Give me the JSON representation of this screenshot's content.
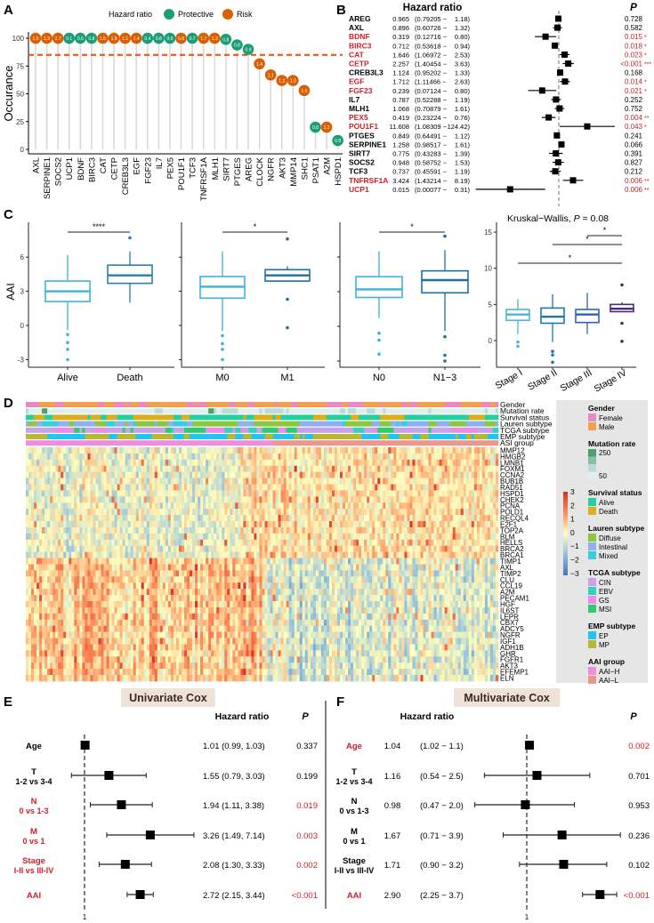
{
  "panel_labels": [
    "A",
    "B",
    "C",
    "D",
    "E",
    "F"
  ],
  "colors": {
    "protective": "#1b9e77",
    "risk": "#d95f02",
    "threshold": "#ff4500",
    "significant_text": "#d0202a",
    "title_box": "#efe2d6",
    "legend_bg": "#e6e6e6"
  },
  "chart_data": [
    {
      "id": "A",
      "type": "scatter",
      "title": "",
      "legend_title": "Hazard ratio",
      "legend": [
        "Protective",
        "Risk"
      ],
      "legend_placement": "top",
      "xlabel": "",
      "ylabel": "Occurance",
      "ylim": [
        0,
        100
      ],
      "yticks": [
        0,
        25,
        50,
        75,
        100
      ],
      "threshold": 85,
      "categories": [
        "AXL",
        "SERPINE1",
        "SOCS2",
        "UCP1",
        "BDNF",
        "BIRC3",
        "CAT",
        "CETP",
        "CREB3L3",
        "EGF",
        "FGF23",
        "IL7",
        "PEX5",
        "POU1F1",
        "TCF3",
        "TNFRSF1A",
        "MLH1",
        "SIRT7",
        "PTGES",
        "AREG",
        "CLOCK",
        "NGFR",
        "AKT3",
        "MMP14",
        "SHC1",
        "PSAT1",
        "A2M",
        "HSPD1"
      ],
      "occurrence": [
        100,
        100,
        100,
        100,
        100,
        100,
        100,
        100,
        100,
        100,
        100,
        100,
        100,
        100,
        100,
        100,
        100,
        99,
        94,
        90,
        77,
        67,
        62,
        62,
        53,
        20,
        20,
        8
      ],
      "hazard_ratio": [
        "1.5",
        "1.3",
        "1.7",
        "0.1",
        "0.6",
        "0.8",
        "1.5",
        "1.8",
        "1.1",
        "1.4",
        "0.4",
        "0.8",
        "0.6",
        "6.8",
        "0.7",
        "1.7",
        "1.3",
        "0.8",
        "0.8",
        "0.9",
        "1.4",
        "1.1",
        "1.2",
        "1.3",
        "1.5",
        "0.8",
        "1.2",
        "0.8"
      ]
    },
    {
      "id": "B",
      "type": "forest",
      "title": "Hazard ratio",
      "p_header": "P",
      "reference": 1,
      "scale": "log",
      "rows": [
        {
          "gene": "AREG",
          "hr": "0.965",
          "low": "0.79205",
          "high": "1.18",
          "p": "0.728",
          "stars": "",
          "sig": false
        },
        {
          "gene": "AXL",
          "hr": "0.896",
          "low": "0.60726",
          "high": "1.32",
          "p": "0.582",
          "stars": "",
          "sig": false
        },
        {
          "gene": "BDNF",
          "hr": "0.319",
          "low": "0.12716",
          "high": "0.80",
          "p": "0.015",
          "stars": "*",
          "sig": true
        },
        {
          "gene": "BIRC3",
          "hr": "0.712",
          "low": "0.53618",
          "high": "0.94",
          "p": "0.018",
          "stars": "*",
          "sig": true
        },
        {
          "gene": "CAT",
          "hr": "1.646",
          "low": "1.06972",
          "high": "2.53",
          "p": "0.023",
          "stars": "*",
          "sig": true
        },
        {
          "gene": "CETP",
          "hr": "2.257",
          "low": "1.40454",
          "high": "3.63",
          "p": "<0.001",
          "stars": "***",
          "sig": true
        },
        {
          "gene": "CREB3L3",
          "hr": "1.124",
          "low": "0.95202",
          "high": "1.33",
          "p": "0.168",
          "stars": "",
          "sig": false
        },
        {
          "gene": "EGF",
          "hr": "1.712",
          "low": "1.11466",
          "high": "2.63",
          "p": "0.014",
          "stars": "*",
          "sig": true
        },
        {
          "gene": "FGF23",
          "hr": "0.239",
          "low": "0.07124",
          "high": "0.80",
          "p": "0.021",
          "stars": "*",
          "sig": true
        },
        {
          "gene": "IL7",
          "hr": "0.787",
          "low": "0.52288",
          "high": "1.19",
          "p": "0.252",
          "stars": "",
          "sig": false
        },
        {
          "gene": "MLH1",
          "hr": "1.068",
          "low": "0.70879",
          "high": "1.61",
          "p": "0.752",
          "stars": "",
          "sig": false
        },
        {
          "gene": "PEX5",
          "hr": "0.419",
          "low": "0.23224",
          "high": "0.76",
          "p": "0.004",
          "stars": "**",
          "sig": true
        },
        {
          "gene": "POU1F1",
          "hr": "11.608",
          "low": "1.08309",
          "high": "124.42",
          "p": "0.043",
          "stars": "*",
          "sig": true
        },
        {
          "gene": "PTGES",
          "hr": "0.849",
          "low": "0.64491",
          "high": "1.12",
          "p": "0.241",
          "stars": "",
          "sig": false
        },
        {
          "gene": "SERPINE1",
          "hr": "1.258",
          "low": "0.98517",
          "high": "1.61",
          "p": "0.066",
          "stars": "",
          "sig": false
        },
        {
          "gene": "SIRT7",
          "hr": "0.775",
          "low": "0.43283",
          "high": "1.39",
          "p": "0.391",
          "stars": "",
          "sig": false
        },
        {
          "gene": "SOCS2",
          "hr": "0.948",
          "low": "0.58752",
          "high": "1.53",
          "p": "0.827",
          "stars": "",
          "sig": false
        },
        {
          "gene": "TCF3",
          "hr": "0.737",
          "low": "0.45591",
          "high": "1.19",
          "p": "0.212",
          "stars": "",
          "sig": false
        },
        {
          "gene": "TNFRSF1A",
          "hr": "3.424",
          "low": "1.43214",
          "high": "8.19",
          "p": "0.006",
          "stars": "**",
          "sig": true
        },
        {
          "gene": "UCP1",
          "hr": "0.015",
          "low": "0.00077",
          "high": "0.31",
          "p": "0.006",
          "stars": "**",
          "sig": true
        }
      ]
    },
    {
      "id": "C",
      "type": "box",
      "ylabel": "AAI",
      "subplots": [
        {
          "yticks": [
            -3,
            0,
            3,
            6
          ],
          "show_tick_labels": true,
          "ylim": [
            -3.5,
            8.5
          ],
          "comparisons": [
            {
              "from": 0,
              "to": 1,
              "label": "****"
            }
          ],
          "groups": [
            {
              "name": "Alive",
              "q1": 2.1,
              "median": 3.0,
              "q3": 3.9,
              "lo": -0.4,
              "hi": 6.2,
              "outliers": [
                -0.8,
                -1.5,
                -2.1,
                -3.0
              ],
              "color": "#3fb2d8"
            },
            {
              "name": "Death",
              "q1": 3.7,
              "median": 4.4,
              "q3": 5.3,
              "lo": 2.0,
              "hi": 6.5,
              "outliers": [
                7.7
              ],
              "color": "#2a7fa8"
            }
          ]
        },
        {
          "yticks": [
            -3,
            0,
            3,
            6
          ],
          "show_tick_labels": false,
          "ylim": [
            -3.5,
            8.5
          ],
          "comparisons": [
            {
              "from": 0,
              "to": 1,
              "label": "*"
            }
          ],
          "groups": [
            {
              "name": "M0",
              "q1": 2.4,
              "median": 3.4,
              "q3": 4.3,
              "lo": -0.5,
              "hi": 6.5,
              "outliers": [
                -0.9,
                -1.6,
                -2.1,
                -3.0
              ],
              "color": "#3fb2d8"
            },
            {
              "name": "M1",
              "q1": 3.9,
              "median": 4.4,
              "q3": 4.9,
              "lo": 3.9,
              "hi": 5.2,
              "outliers": [
                7.6,
                2.3,
                -0.2
              ],
              "color": "#1e6f9f"
            }
          ]
        },
        {
          "yticks": [
            -3,
            0,
            3,
            6
          ],
          "show_tick_labels": false,
          "ylim": [
            -3.5,
            8.5
          ],
          "comparisons": [
            {
              "from": 0,
              "to": 1,
              "label": "*"
            }
          ],
          "groups": [
            {
              "name": "N0",
              "q1": 2.5,
              "median": 3.2,
              "q3": 4.3,
              "lo": 0.7,
              "hi": 6.5,
              "outliers": [
                -0.6,
                -1.2,
                -2.4
              ],
              "color": "#3fb2d8"
            },
            {
              "name": "N1−3",
              "q1": 2.9,
              "median": 4.0,
              "q3": 4.8,
              "lo": -0.4,
              "hi": 6.6,
              "outliers": [
                7.8,
                -0.9,
                -2.5,
                -3.0
              ],
              "color": "#1e6f9f"
            }
          ]
        },
        {
          "title": "Kruskal−Wallis, ",
          "title_p": "P",
          "title_value": " = 0.08",
          "yticks": [
            0,
            5,
            10,
            15
          ],
          "show_tick_labels": true,
          "ylim": [
            -3.5,
            16
          ],
          "comparisons": [
            {
              "from": 2,
              "to": 3,
              "label": "*"
            },
            {
              "from": 1,
              "to": 3,
              "label": "*"
            },
            {
              "from": 0,
              "to": 3,
              "label": "*"
            }
          ],
          "groups": [
            {
              "name": "Stage I",
              "q1": 2.8,
              "median": 3.6,
              "q3": 4.3,
              "lo": 0.9,
              "hi": 5.7,
              "outliers": [
                -0.2,
                -0.8
              ],
              "color": "#48b5d8"
            },
            {
              "name": "Stage II",
              "q1": 2.4,
              "median": 3.3,
              "q3": 4.5,
              "lo": -0.2,
              "hi": 6.4,
              "outliers": [
                -1.5,
                -2.0,
                -3.0
              ],
              "color": "#1f77a8"
            },
            {
              "name": "Stage III",
              "q1": 2.5,
              "median": 3.6,
              "q3": 4.3,
              "lo": 0.9,
              "hi": 6.6,
              "outliers": [],
              "color": "#2e5fbf"
            },
            {
              "name": "Stage IV",
              "q1": 4.0,
              "median": 4.4,
              "q3": 5.0,
              "lo": 4.0,
              "hi": 5.3,
              "outliers": [
                7.7,
                2.4,
                -0.1
              ],
              "color": "#4b2a7a"
            }
          ]
        }
      ]
    },
    {
      "id": "D",
      "type": "heatmap",
      "color_range": [
        -3,
        3
      ],
      "color_ticks": [
        "3",
        "2",
        "1",
        "0",
        "−1",
        "−2",
        "−3"
      ],
      "annotation_rows": [
        "Gender",
        "Mutation rate",
        "Survival status",
        "Lauren subtype",
        "TCGA subtype",
        "EMP subtype",
        "ASI group"
      ],
      "rows": [
        "MMP12",
        "HMGB2",
        "LMNB1",
        "FOXM1",
        "CCNA2",
        "BUB1B",
        "RAD51",
        "HSPD1",
        "CHEK2",
        "PCNA",
        "POLD1",
        "RECQL4",
        "E2F1",
        "TOP2A",
        "BLM",
        "HELLS",
        "BRCA2",
        "BRCA1",
        "TIMP1",
        "AXL",
        "TIMP2",
        "CLU",
        "CCL19",
        "A2M",
        "PECAM1",
        "HGF",
        "IL6ST",
        "LEPR",
        "CBX7",
        "ADCY5",
        "NGFR",
        "IGF1",
        "ADH1B",
        "GHR",
        "FGFR1",
        "AKT3",
        "EFEMP1",
        "ELN"
      ],
      "legend": [
        {
          "title": "Gender",
          "items": [
            {
              "label": "Female",
              "color": "#e78ac3"
            },
            {
              "label": "Male",
              "color": "#f0a04f"
            }
          ]
        },
        {
          "title": "Mutation rate",
          "gradient": [
            "#4d9f6f",
            "#86c0a6",
            "#b9dcd8",
            "#e2eeee"
          ],
          "labels": [
            "250",
            "50"
          ]
        },
        {
          "title": "Survival status",
          "items": [
            {
              "label": "Alive",
              "color": "#22d19d"
            },
            {
              "label": "Death",
              "color": "#dcae1d"
            }
          ]
        },
        {
          "title": "Lauren subtype",
          "items": [
            {
              "label": "Diffuse",
              "color": "#8dc63f"
            },
            {
              "label": "Intestinal",
              "color": "#8eb1ef"
            },
            {
              "label": "Mixed",
              "color": "#35cde0"
            }
          ]
        },
        {
          "title": "TCGA subtype",
          "items": [
            {
              "label": "CIN",
              "color": "#c9a1e9"
            },
            {
              "label": "EBV",
              "color": "#2fd3bf"
            },
            {
              "label": "GS",
              "color": "#f08ae7"
            },
            {
              "label": "MSI",
              "color": "#2ecc71"
            }
          ]
        },
        {
          "title": "EMP subtype",
          "items": [
            {
              "label": "EP",
              "color": "#22c4f0"
            },
            {
              "label": "MP",
              "color": "#b8b833"
            }
          ]
        },
        {
          "title": "AAI group",
          "items": [
            {
              "label": "AAI−H",
              "color": "#f08be0"
            },
            {
              "label": "AAI−L",
              "color": "#ee968c"
            }
          ]
        }
      ]
    },
    {
      "id": "E",
      "type": "forest",
      "title": "Univariate Cox",
      "hr_header": "Hazard ratio",
      "p_header": "P",
      "reference": 1,
      "reference_label": "1",
      "scale": "log",
      "rows": [
        {
          "label": "Age",
          "sublabel": "",
          "hr": 1.01,
          "low": 0.99,
          "high": 1.03,
          "text": "1.01 (0.99, 1.03)",
          "p": "0.337",
          "sig": false,
          "label_sig": false
        },
        {
          "label": "T",
          "sublabel": "1-2 vs 3-4",
          "hr": 1.55,
          "low": 0.79,
          "high": 3.03,
          "text": "1.55 (0.79, 3.03)",
          "p": "0.199",
          "sig": false,
          "label_sig": false
        },
        {
          "label": "N",
          "sublabel": "0 vs 1-3",
          "hr": 1.94,
          "low": 1.11,
          "high": 3.38,
          "text": "1.94 (1.11, 3.38)",
          "p": "0.019",
          "sig": true,
          "label_sig": true
        },
        {
          "label": "M",
          "sublabel": "0 vs 1",
          "hr": 3.26,
          "low": 1.49,
          "high": 7.14,
          "text": "3.26 (1.49, 7.14)",
          "p": "0.003",
          "sig": true,
          "label_sig": true
        },
        {
          "label": "Stage",
          "sublabel": "I-II vs III-IV",
          "hr": 2.08,
          "low": 1.3,
          "high": 3.33,
          "text": "2.08 (1.30, 3.33)",
          "p": "0.002",
          "sig": true,
          "label_sig": true
        },
        {
          "label": "AAI",
          "sublabel": "",
          "hr": 2.72,
          "low": 2.15,
          "high": 3.44,
          "text": "2.72 (2.15, 3.44)",
          "p": "<0.001",
          "sig": true,
          "label_sig": true
        }
      ]
    },
    {
      "id": "F",
      "type": "forest",
      "title": "Multivariate Cox",
      "hr_header": "Hazard ratio",
      "p_header": "P",
      "reference": 1,
      "reference_label": "1",
      "scale": "log",
      "rows": [
        {
          "label": "Age",
          "sublabel": "",
          "hr": 1.04,
          "low": 1.02,
          "high": 1.1,
          "hr_text": "1.04",
          "ci_text": "(1.02 − 1.1)",
          "p": "0.002",
          "sig": true,
          "label_sig": true
        },
        {
          "label": "T",
          "sublabel": "1-2 vs 3-4",
          "hr": 1.16,
          "low": 0.54,
          "high": 2.5,
          "hr_text": "1.16",
          "ci_text": "(0.54 − 2.5)",
          "p": "0.701",
          "sig": false,
          "label_sig": false
        },
        {
          "label": "N",
          "sublabel": "0 vs 1-3",
          "hr": 0.98,
          "low": 0.47,
          "high": 2.0,
          "hr_text": "0.98",
          "ci_text": "(0.47 − 2.0)",
          "p": "0.953",
          "sig": false,
          "label_sig": false
        },
        {
          "label": "M",
          "sublabel": "0 vs 1",
          "hr": 1.67,
          "low": 0.71,
          "high": 3.9,
          "hr_text": "1.67",
          "ci_text": "(0.71 − 3.9)",
          "p": "0.236",
          "sig": false,
          "label_sig": false
        },
        {
          "label": "Stage",
          "sublabel": "I-II vs III-IV",
          "hr": 1.71,
          "low": 0.9,
          "high": 3.2,
          "hr_text": "1.71",
          "ci_text": "(0.90 − 3.2)",
          "p": "0.102",
          "sig": false,
          "label_sig": false
        },
        {
          "label": "AAI",
          "sublabel": "",
          "hr": 2.9,
          "low": 2.25,
          "high": 3.7,
          "hr_text": "2.90",
          "ci_text": "(2.25 − 3.7)",
          "p": "<0.001",
          "sig": true,
          "label_sig": true
        }
      ]
    }
  ]
}
